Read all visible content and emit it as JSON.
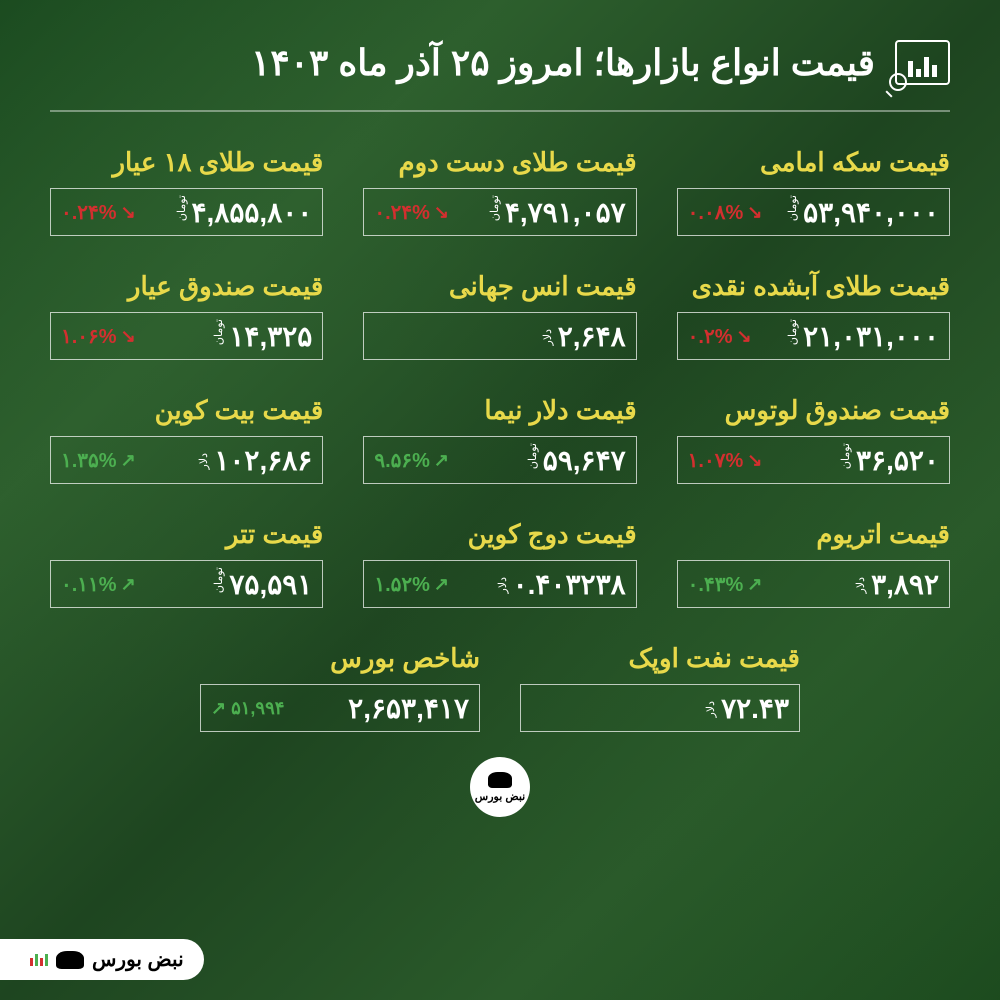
{
  "title": "قیمت انواع بازارها؛ امروز ۲۵ آذر ماه ۱۴۰۳",
  "units": {
    "toman": "تومان",
    "dollar": "دلار"
  },
  "colors": {
    "up": "#4caf50",
    "down": "#d32f2f",
    "label": "#e8d94a",
    "text": "#ffffff"
  },
  "items": [
    {
      "label": "قیمت سکه امامی",
      "price": "۵۳,۹۴۰,۰۰۰",
      "unit": "تومان",
      "change": "۰.۰۸%",
      "dir": "down"
    },
    {
      "label": "قیمت طلای دست دوم",
      "price": "۴,۷۹۱,۰۵۷",
      "unit": "تومان",
      "change": "۰.۲۴%",
      "dir": "down"
    },
    {
      "label": "قیمت طلای ۱۸ عیار",
      "price": "۴,۸۵۵,۸۰۰",
      "unit": "تومان",
      "change": "۰.۲۴%",
      "dir": "down"
    },
    {
      "label": "قیمت طلای آبشده نقدی",
      "price": "۲۱,۰۳۱,۰۰۰",
      "unit": "تومان",
      "change": "۰.۲%",
      "dir": "down"
    },
    {
      "label": "قیمت انس جهانی",
      "price": "۲,۶۴۸",
      "unit": "دلار",
      "change": "",
      "dir": ""
    },
    {
      "label": "قیمت صندوق عیار",
      "price": "۱۴,۳۲۵",
      "unit": "تومان",
      "change": "۱.۰۶%",
      "dir": "down"
    },
    {
      "label": "قیمت صندوق لوتوس",
      "price": "۳۶,۵۲۰",
      "unit": "تومان",
      "change": "۱.۰۷%",
      "dir": "down"
    },
    {
      "label": "قیمت دلار نیما",
      "price": "۵۹,۶۴۷",
      "unit": "تومان",
      "change": "۹.۵۶%",
      "dir": "up"
    },
    {
      "label": "قیمت بیت کوین",
      "price": "۱۰۲,۶۸۶",
      "unit": "دلار",
      "change": "۱.۳۵%",
      "dir": "up"
    },
    {
      "label": "قیمت اتریوم",
      "price": "۳,۸۹۲",
      "unit": "دلار",
      "change": "۰.۴۳%",
      "dir": "up"
    },
    {
      "label": "قیمت دوج کوین",
      "price": "۰.۴۰۳۲۳۸",
      "unit": "دلار",
      "change": "۱.۵۲%",
      "dir": "up"
    },
    {
      "label": "قیمت تتر",
      "price": "۷۵,۵۹۱",
      "unit": "تومان",
      "change": "۰.۱۱%",
      "dir": "up"
    }
  ],
  "bottom": [
    {
      "label": "قیمت نفت اوپک",
      "price": "۷۲.۴۳",
      "unit": "دلار",
      "change": "",
      "dir": ""
    },
    {
      "label": "شاخص بورس",
      "price": "۲,۶۵۳,۴۱۷",
      "unit": "",
      "change": "۵۱,۹۹۴",
      "dir": "up",
      "isIndex": true
    }
  ],
  "brand": "نبض بورس"
}
